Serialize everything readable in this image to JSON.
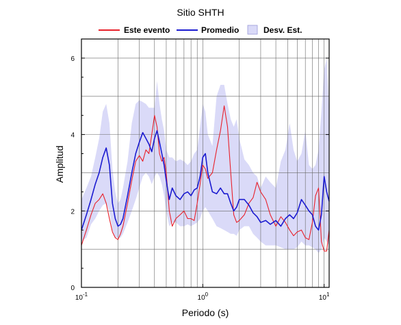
{
  "chart_data": {
    "type": "line",
    "title": "Sitio SHTH",
    "xlabel": "Periodo (s)",
    "ylabel": "Amplitud",
    "xscale": "log",
    "xlim": [
      0.1,
      11
    ],
    "ylim": [
      0,
      6.5
    ],
    "xticks": [
      {
        "value": 0.1,
        "mantissa": "10",
        "exp": "-1"
      },
      {
        "value": 1,
        "mantissa": "10",
        "exp": "0"
      },
      {
        "value": 10,
        "mantissa": "10",
        "exp": "1"
      }
    ],
    "yticks": [
      {
        "value": 0,
        "label": "0"
      },
      {
        "value": 2,
        "label": "2"
      },
      {
        "value": 4,
        "label": "4"
      },
      {
        "value": 6,
        "label": "6"
      }
    ],
    "grid": true,
    "legend_position": "top",
    "legend": [
      {
        "key": "evento",
        "label": "Este evento",
        "color": "#e8202a",
        "kind": "line"
      },
      {
        "key": "promedio",
        "label": "Promedio",
        "color": "#1a1ad0",
        "kind": "line"
      },
      {
        "key": "desv",
        "label": "Desv. Est.",
        "color": "#dadaf8",
        "kind": "band"
      }
    ],
    "x": [
      0.1,
      0.11,
      0.12,
      0.13,
      0.14,
      0.15,
      0.16,
      0.17,
      0.18,
      0.19,
      0.2,
      0.21,
      0.22,
      0.24,
      0.26,
      0.28,
      0.3,
      0.32,
      0.34,
      0.36,
      0.38,
      0.4,
      0.42,
      0.44,
      0.46,
      0.48,
      0.5,
      0.53,
      0.56,
      0.6,
      0.65,
      0.7,
      0.75,
      0.8,
      0.85,
      0.9,
      0.95,
      1.0,
      1.05,
      1.1,
      1.2,
      1.3,
      1.4,
      1.5,
      1.6,
      1.7,
      1.8,
      1.9,
      2.0,
      2.2,
      2.4,
      2.6,
      2.8,
      3.0,
      3.3,
      3.6,
      4.0,
      4.4,
      4.8,
      5.2,
      5.6,
      6.0,
      6.5,
      7.0,
      7.5,
      8.0,
      8.5,
      9.0,
      9.5,
      10.0,
      10.5,
      11.0
    ],
    "series": [
      {
        "name": "Este evento",
        "color": "#e8202a",
        "values": [
          1.1,
          1.5,
          1.9,
          2.2,
          2.3,
          2.45,
          2.2,
          1.8,
          1.45,
          1.3,
          1.25,
          1.4,
          1.6,
          2.2,
          2.8,
          3.3,
          3.45,
          3.3,
          3.6,
          3.5,
          4.0,
          4.5,
          4.2,
          3.5,
          3.3,
          3.4,
          3.0,
          2.0,
          1.6,
          1.8,
          1.9,
          2.0,
          1.8,
          1.8,
          1.75,
          2.2,
          2.7,
          3.2,
          3.1,
          2.85,
          3.0,
          3.6,
          4.1,
          4.75,
          4.2,
          3.0,
          1.9,
          1.7,
          1.75,
          1.9,
          2.2,
          2.35,
          2.75,
          2.5,
          2.3,
          1.9,
          1.6,
          1.85,
          1.7,
          1.5,
          1.35,
          1.45,
          1.5,
          1.3,
          1.25,
          1.7,
          2.4,
          2.6,
          1.2,
          0.95,
          0.95,
          1.5
        ]
      },
      {
        "name": "Promedio",
        "color": "#1a1ad0",
        "values": [
          1.5,
          1.9,
          2.3,
          2.7,
          3.0,
          3.4,
          3.65,
          3.2,
          2.2,
          1.8,
          1.6,
          1.65,
          1.8,
          2.4,
          3.0,
          3.5,
          3.8,
          4.05,
          3.9,
          3.75,
          3.55,
          3.9,
          4.1,
          3.8,
          3.5,
          3.2,
          2.8,
          2.3,
          2.6,
          2.4,
          2.3,
          2.45,
          2.5,
          2.4,
          2.55,
          2.6,
          2.9,
          3.4,
          3.5,
          3.0,
          2.5,
          2.45,
          2.6,
          2.45,
          2.45,
          2.2,
          2.0,
          2.1,
          2.3,
          2.3,
          2.15,
          1.95,
          1.85,
          1.7,
          1.75,
          1.65,
          1.75,
          1.6,
          1.8,
          1.9,
          1.8,
          1.95,
          2.3,
          2.15,
          2.0,
          1.9,
          1.6,
          1.5,
          1.9,
          2.9,
          2.5,
          2.25
        ]
      }
    ],
    "band": {
      "name": "Desv. Est.",
      "color": "#dadaf8",
      "upper": [
        2.3,
        2.6,
        2.9,
        3.4,
        3.9,
        4.6,
        4.8,
        4.3,
        3.1,
        2.5,
        2.2,
        2.3,
        2.6,
        3.3,
        4.3,
        4.8,
        4.9,
        4.85,
        4.8,
        4.7,
        4.7,
        4.7,
        5.4,
        4.8,
        4.4,
        4.1,
        3.6,
        3.4,
        3.4,
        3.3,
        3.35,
        3.3,
        3.2,
        3.3,
        3.5,
        3.6,
        4.2,
        4.8,
        4.6,
        4.0,
        3.7,
        5.0,
        5.3,
        5.3,
        4.8,
        4.4,
        4.2,
        4.4,
        3.9,
        3.35,
        3.2,
        3.0,
        2.9,
        2.6,
        2.9,
        2.75,
        2.6,
        3.3,
        3.6,
        4.3,
        3.6,
        3.3,
        3.5,
        4.1,
        3.2,
        3.1,
        3.2,
        3.6,
        4.6,
        5.7,
        6.0,
        4.6
      ],
      "lower": [
        1.2,
        1.3,
        1.65,
        1.8,
        2.0,
        2.15,
        2.2,
        2.0,
        1.5,
        1.3,
        1.3,
        1.3,
        1.4,
        1.7,
        2.0,
        2.3,
        2.6,
        2.9,
        3.0,
        2.9,
        2.7,
        2.9,
        3.0,
        2.9,
        2.7,
        2.4,
        2.0,
        1.6,
        1.7,
        1.7,
        1.6,
        1.6,
        1.65,
        1.6,
        1.65,
        1.7,
        1.8,
        2.0,
        2.1,
        2.0,
        1.8,
        1.6,
        1.55,
        1.5,
        1.45,
        1.4,
        1.4,
        1.35,
        1.5,
        1.6,
        1.6,
        1.4,
        1.3,
        1.2,
        1.1,
        1.1,
        1.1,
        1.05,
        1.0,
        1.0,
        1.0,
        1.05,
        1.2,
        1.1,
        1.1,
        1.05,
        1.0,
        0.9,
        1.0,
        1.3,
        1.2,
        1.1
      ]
    }
  }
}
